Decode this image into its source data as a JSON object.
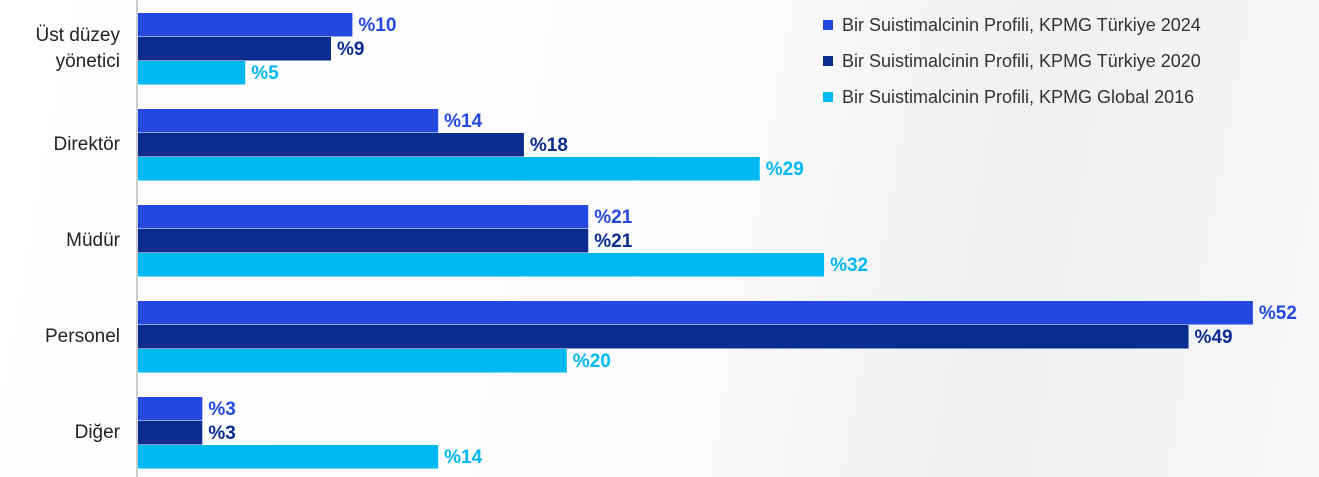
{
  "chart_data": {
    "type": "barh",
    "categories": [
      "Üst düzey yönetici",
      "Direktör",
      "Müdür",
      "Personel",
      "Diğer"
    ],
    "series": [
      {
        "name": "Bir Suistimalcinin Profili, KPMG Türkiye 2024",
        "color": "#2449e0",
        "values": [
          10,
          14,
          21,
          52,
          3
        ],
        "value_labels": [
          "%10",
          "%14",
          "%21",
          "%52",
          "%3"
        ]
      },
      {
        "name": "Bir Suistimalcinin Profili, KPMG Türkiye 2020",
        "color": "#0a2c8f",
        "values": [
          9,
          18,
          21,
          49,
          3
        ],
        "value_labels": [
          "%9",
          "%18",
          "%21",
          "%49",
          "%3"
        ]
      },
      {
        "name": "Bir Suistimalcinin Profili, KPMG Global 2016",
        "color": "#00b9f2",
        "values": [
          5,
          29,
          32,
          20,
          14
        ],
        "value_labels": [
          "%5",
          "%29",
          "%32",
          "%20",
          "%14"
        ]
      }
    ],
    "legend": "upper right"
  }
}
